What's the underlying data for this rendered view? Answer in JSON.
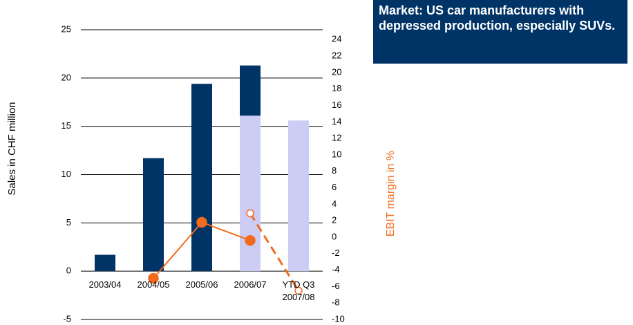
{
  "chart_data": {
    "type": "bar",
    "annotation": "Market: US car manufacturers with depressed production, especially SUVs.",
    "ylabel": "Sales in CHF million",
    "y2label": "EBIT margin in %",
    "categories": [
      "2003/04",
      "2004/05",
      "2005/06",
      "2006/07",
      "YTD Q3 2007/08"
    ],
    "ylim": [
      -5,
      25
    ],
    "yticks": [
      -5,
      0,
      5,
      10,
      15,
      20,
      25
    ],
    "y2lim": [
      -10,
      25.2
    ],
    "y2ticks": [
      -10,
      -8,
      -6,
      -4,
      -2,
      0,
      2,
      4,
      6,
      8,
      10,
      12,
      14,
      16,
      18,
      20,
      22,
      24
    ],
    "grid": true,
    "series": [
      {
        "type": "bar",
        "color": "#ccccf5",
        "values": [
          null,
          null,
          null,
          16.1,
          15.6
        ]
      },
      {
        "type": "bar",
        "color": "#003366",
        "values": [
          1.7,
          11.7,
          19.4,
          5.2,
          null
        ]
      },
      {
        "type": "line",
        "axis": "y2",
        "color": "#f26b1d",
        "values": [
          null,
          -5.0,
          1.8,
          -0.4,
          null
        ]
      },
      {
        "type": "line",
        "axis": "y2",
        "color": "#f26b1d",
        "dashed": true,
        "hollow": true,
        "values": [
          null,
          null,
          null,
          2.9,
          -6.5
        ]
      }
    ]
  }
}
